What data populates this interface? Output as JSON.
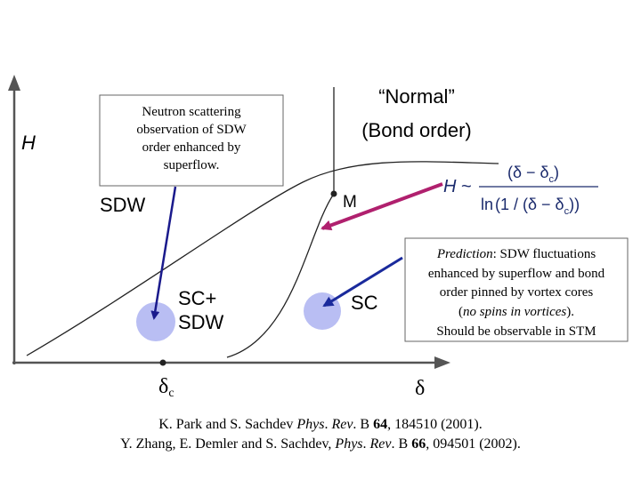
{
  "axes": {
    "y_label": "H",
    "x_label": "δ",
    "x_point_label": {
      "main": "δ",
      "sub": "c"
    }
  },
  "regions": {
    "sdw": "SDW",
    "sc_sdw": [
      "SC+",
      "SDW"
    ],
    "sc": "SC",
    "normal": [
      "“Normal”",
      "(Bond order)"
    ]
  },
  "point_m": "M",
  "note_neutron": [
    "Neutron scattering",
    "observation of SDW",
    "order enhanced by",
    "superflow."
  ],
  "note_prediction": [
    [
      "Prediction",
      ": SDW fluctuations"
    ],
    [
      "enhanced by superflow and bond"
    ],
    [
      "order pinned by vortex cores"
    ],
    [
      "(",
      "no spins in vortices",
      ")."
    ],
    [
      "Should be observable in STM"
    ]
  ],
  "formula": {
    "lhs": [
      "H",
      " ~"
    ],
    "numerator": [
      "(δ − δ",
      "c",
      ")"
    ],
    "denominator": [
      "ln",
      "(1 / (δ − δ",
      "c",
      "))"
    ]
  },
  "references": [
    [
      "K. Park and S. Sachdev ",
      "Phys",
      ". ",
      "Rev",
      ". B ",
      "64",
      ", 184510 (2001)."
    ],
    [
      "Y. Zhang, E. Demler and S. Sachdev, ",
      "Phys",
      ". ",
      "Rev",
      ". B ",
      "66",
      ", 094501 (2002)."
    ]
  ]
}
